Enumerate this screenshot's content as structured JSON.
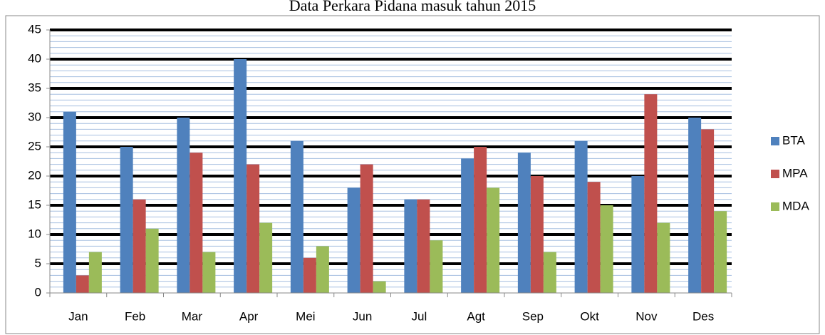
{
  "chart_data": {
    "type": "bar",
    "title": "Data Perkara Pidana masuk tahun 2015",
    "categories": [
      "Jan",
      "Feb",
      "Mar",
      "Apr",
      "Mei",
      "Jun",
      "Jul",
      "Agt",
      "Sep",
      "Okt",
      "Nov",
      "Des"
    ],
    "series": [
      {
        "name": "BTA",
        "color": "#4f81bd",
        "values": [
          31,
          25,
          30,
          40,
          26,
          18,
          16,
          23,
          24,
          26,
          20,
          30
        ]
      },
      {
        "name": "MPA",
        "color": "#c0504d",
        "values": [
          3,
          16,
          24,
          22,
          6,
          22,
          16,
          25,
          20,
          19,
          34,
          28
        ]
      },
      {
        "name": "MDA",
        "color": "#9bbb59",
        "values": [
          7,
          11,
          7,
          12,
          8,
          2,
          9,
          18,
          7,
          15,
          12,
          14
        ]
      }
    ],
    "ylim": [
      0,
      45
    ],
    "yticks": [
      0,
      5,
      10,
      15,
      20,
      25,
      30,
      35,
      40,
      45
    ],
    "grid": true,
    "minor_grid": true,
    "legend": "right"
  }
}
